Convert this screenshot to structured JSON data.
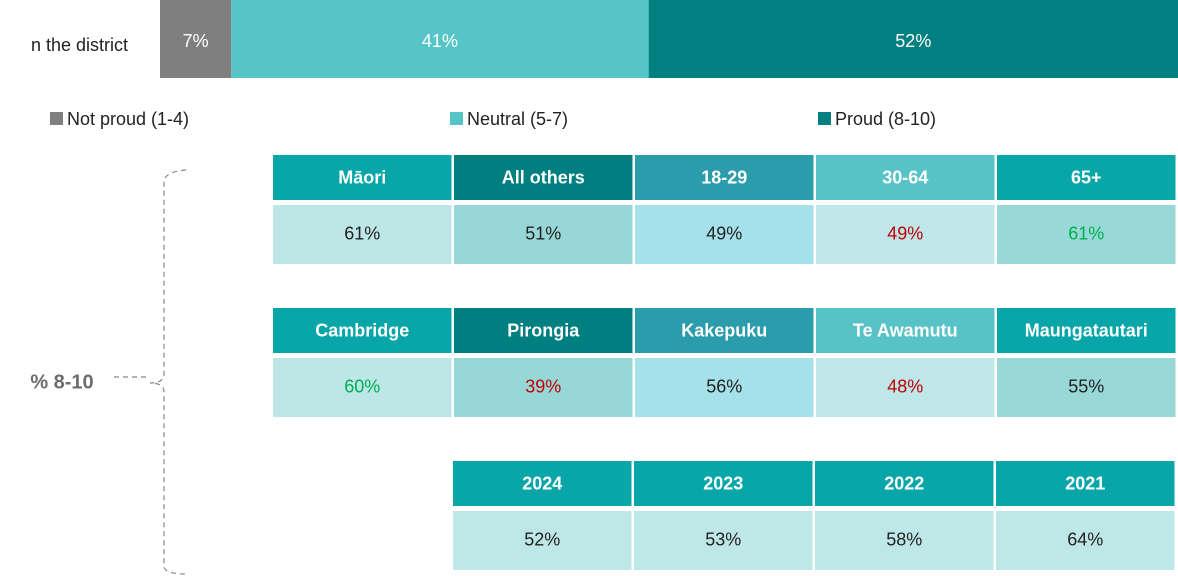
{
  "chart_data": {
    "type": "stacked-bar-horizontal",
    "categories": [
      "n the district"
    ],
    "series": [
      {
        "name": "Not proud (1-4)",
        "color": "#7f7f7f",
        "values": [
          7
        ],
        "value_labels": [
          "7%"
        ]
      },
      {
        "name": "Neutral (5-7)",
        "color": "#56c5c8",
        "values": [
          41
        ],
        "value_labels": [
          "41%"
        ]
      },
      {
        "name": "Proud (8-10)",
        "color": "#008080",
        "values": [
          52
        ],
        "value_labels": [
          "52%"
        ]
      }
    ]
  },
  "summary_label": "% 8-10",
  "tables": [
    {
      "headers": [
        "Māori",
        "All others",
        "18-29",
        "30-64",
        "65+"
      ],
      "values": [
        "61%",
        "51%",
        "49%",
        "49%",
        "61%"
      ],
      "header_colors": [
        "#08a6a8",
        "#007f80",
        "#2b9cac",
        "#58c3c7",
        "#08a6a8"
      ],
      "cell_colors": [
        "#bde6e7",
        "#98d7d7",
        "#a4e1e9",
        "#bfe6e8",
        "#98d9d8"
      ],
      "text_colors": [
        "#222222",
        "#222222",
        "#222222",
        "#c00000",
        "#00b050"
      ]
    },
    {
      "headers": [
        "Cambridge",
        "Pirongia",
        "Kakepuku",
        "Te Awamutu",
        "Maungatautari"
      ],
      "values": [
        "60%",
        "39%",
        "56%",
        "48%",
        "55%"
      ],
      "header_colors": [
        "#08a6a8",
        "#007f80",
        "#2b9cac",
        "#58c3c7",
        "#08a6a8"
      ],
      "cell_colors": [
        "#bde6e7",
        "#98d7d7",
        "#a4e1e9",
        "#bfe6e8",
        "#98d9d8"
      ],
      "text_colors": [
        "#00b050",
        "#c00000",
        "#222222",
        "#c00000",
        "#222222"
      ]
    },
    {
      "headers": [
        "2024",
        "2023",
        "2022",
        "2021"
      ],
      "values": [
        "52%",
        "53%",
        "58%",
        "64%"
      ],
      "header_colors": [
        "#08a6a8",
        "#08a6a8",
        "#08a6a8",
        "#08a6a8"
      ],
      "cell_colors": [
        "#bee7e8",
        "#bee7e8",
        "#bee7e8",
        "#bee7e8"
      ],
      "text_colors": [
        "#222222",
        "#222222",
        "#222222",
        "#222222"
      ]
    }
  ]
}
